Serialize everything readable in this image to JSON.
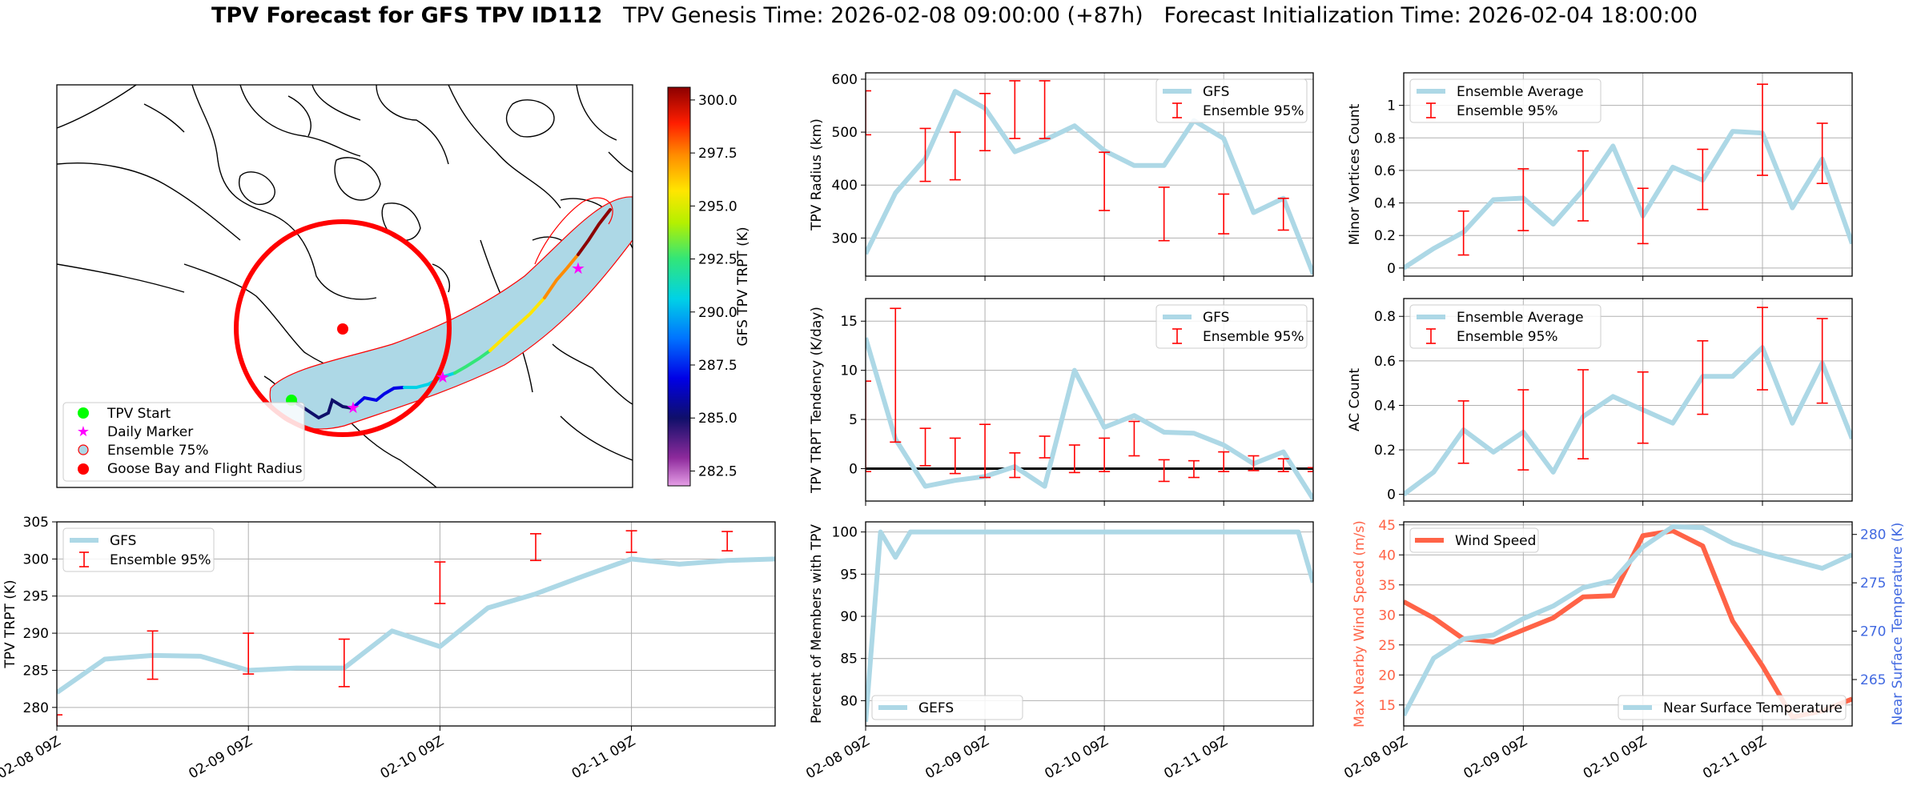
{
  "title": {
    "bold": "TPV Forecast for GFS TPV ID112",
    "genesis": "TPV Genesis Time: 2026-02-08 09:00:00 (+87h)",
    "init": "Forecast Initialization Time: 2026-02-04 18:00:00"
  },
  "colors": {
    "gfs_line": "#add8e6",
    "error_bar": "#ff0000",
    "wind_line": "#ff6347",
    "temp_axis": "#4169e1",
    "flight_radius": "#ff0000",
    "ensemble_area": "#add8e6",
    "start_marker": "#00ff00",
    "daily_marker": "#ff00ff"
  },
  "map": {
    "legend": [
      "TPV Start",
      "Daily Marker",
      "Ensemble 75%",
      "Goose Bay and Flight Radius"
    ],
    "colorbar": {
      "label": "GFS TPV TRPT (K)",
      "range": [
        281.8,
        300.6
      ],
      "ticks": [
        "300.0",
        "297.5",
        "295.0",
        "292.5",
        "290.0",
        "287.5",
        "285.0",
        "282.5"
      ]
    }
  },
  "chart_data": [
    {
      "id": "trpt",
      "type": "line",
      "ylabel": "TPV TRPT (K)",
      "ylim": [
        277.5,
        305
      ],
      "yticks": [
        280,
        285,
        290,
        295,
        300,
        305
      ],
      "xticks": [
        "02-08 09Z",
        "02-09 09Z",
        "02-10 09Z",
        "02-11 09Z"
      ],
      "legend": [
        "GFS",
        "Ensemble 95%"
      ],
      "series": [
        {
          "name": "GFS",
          "x": [
            0,
            6,
            12,
            18,
            24,
            30,
            36,
            42,
            48,
            54,
            60,
            66,
            72,
            78,
            84,
            90
          ],
          "values": [
            282.0,
            286.5,
            287.0,
            286.9,
            285.0,
            285.3,
            285.3,
            290.3,
            288.2,
            293.4,
            295.3,
            297.7,
            300.0,
            299.3,
            299.8,
            300.0
          ]
        }
      ],
      "error_bars": {
        "x": [
          0,
          12,
          24,
          36,
          48,
          60,
          72,
          84
        ],
        "low": [
          277.0,
          283.8,
          284.5,
          282.8,
          294.0,
          299.8,
          300.9,
          301.1
        ],
        "high": [
          279.0,
          290.3,
          290.0,
          289.2,
          299.6,
          303.4,
          303.8,
          303.7
        ]
      }
    },
    {
      "id": "radius",
      "type": "line",
      "ylabel": "TPV Radius (km)",
      "ylim": [
        228,
        612
      ],
      "yticks": [
        300,
        400,
        500,
        600
      ],
      "xticks": [],
      "legend": [
        "GFS",
        "Ensemble 95%"
      ],
      "series": [
        {
          "name": "GFS",
          "x": [
            0,
            6,
            12,
            18,
            24,
            30,
            36,
            42,
            48,
            54,
            60,
            66,
            72,
            78,
            84,
            90
          ],
          "values": [
            270,
            385,
            450,
            577,
            545,
            463,
            485,
            512,
            465,
            437,
            437,
            522,
            488,
            348,
            375,
            232
          ]
        }
      ],
      "error_bars": {
        "x": [
          0,
          12,
          18,
          24,
          30,
          36,
          48,
          60,
          72,
          84
        ],
        "low": [
          495,
          407,
          410,
          465,
          488,
          488,
          352,
          295,
          308,
          315
        ],
        "high": [
          578,
          507,
          500,
          573,
          597,
          597,
          462,
          396,
          383,
          375
        ]
      }
    },
    {
      "id": "tendency",
      "type": "line",
      "ylabel": "TPV TRPT Tendency (K/day)",
      "ylim": [
        -3.3,
        17.3
      ],
      "yticks": [
        0,
        5,
        10,
        15
      ],
      "xticks": [],
      "legend": [
        "GFS",
        "Ensemble 95%"
      ],
      "series": [
        {
          "name": "GFS",
          "x": [
            0,
            6,
            12,
            18,
            24,
            30,
            36,
            42,
            48,
            54,
            60,
            66,
            72,
            78,
            84,
            90
          ],
          "values": [
            13.3,
            3.0,
            -1.8,
            -1.2,
            -0.8,
            0.2,
            -1.8,
            10.0,
            4.2,
            5.4,
            3.7,
            3.6,
            2.4,
            0.5,
            1.7,
            -3.1
          ]
        }
      ],
      "error_bars": {
        "x": [
          0,
          6,
          12,
          18,
          24,
          30,
          36,
          42,
          48,
          54,
          60,
          66,
          72,
          78,
          84,
          90
        ],
        "low": [
          -0.3,
          2.7,
          0.3,
          -0.5,
          -0.9,
          -0.9,
          1.1,
          -0.4,
          -0.3,
          1.3,
          -1.3,
          -0.9,
          -0.3,
          -0.2,
          -0.3,
          -0.3
        ],
        "high": [
          8.9,
          16.3,
          4.1,
          3.1,
          4.5,
          1.6,
          3.3,
          2.4,
          3.1,
          4.8,
          0.9,
          0.8,
          1.7,
          1.3,
          1.0,
          0.1
        ]
      },
      "zero_line": 0
    },
    {
      "id": "percent",
      "type": "line",
      "ylabel": "Percent of Members with TPV",
      "ylim": [
        77,
        101.2
      ],
      "yticks": [
        80,
        85,
        90,
        95,
        100
      ],
      "xticks": [
        "02-08 09Z",
        "02-09 09Z",
        "02-10 09Z",
        "02-11 09Z"
      ],
      "legend": [
        "GEFS"
      ],
      "series": [
        {
          "name": "GEFS",
          "x": [
            0,
            3,
            6,
            9,
            12,
            18,
            24,
            30,
            36,
            42,
            48,
            54,
            60,
            66,
            72,
            78,
            84,
            87,
            90
          ],
          "values": [
            77.5,
            100,
            97,
            100,
            100,
            100,
            100,
            100,
            100,
            100,
            100,
            100,
            100,
            100,
            100,
            100,
            100,
            100,
            94
          ]
        }
      ]
    },
    {
      "id": "minor",
      "type": "line",
      "ylabel": "Minor Vortices Count",
      "ylim": [
        -0.05,
        1.2
      ],
      "yticks": [
        0.0,
        0.2,
        0.4,
        0.6,
        0.8,
        1.0
      ],
      "xticks": [],
      "legend": [
        "Ensemble Average",
        "Ensemble 95%"
      ],
      "series": [
        {
          "name": "Ensemble Average",
          "x": [
            0,
            6,
            12,
            18,
            24,
            30,
            36,
            42,
            48,
            54,
            60,
            66,
            72,
            78,
            84,
            90
          ],
          "values": [
            0.0,
            0.12,
            0.22,
            0.42,
            0.43,
            0.27,
            0.48,
            0.75,
            0.32,
            0.62,
            0.54,
            0.84,
            0.83,
            0.37,
            0.67,
            0.15
          ]
        }
      ],
      "error_bars": {
        "x": [
          12,
          24,
          36,
          48,
          60,
          72,
          84
        ],
        "low": [
          0.08,
          0.23,
          0.29,
          0.15,
          0.36,
          0.57,
          0.52
        ],
        "high": [
          0.35,
          0.61,
          0.72,
          0.49,
          0.73,
          1.13,
          0.89
        ]
      }
    },
    {
      "id": "ac",
      "type": "line",
      "ylabel": "AC Count",
      "ylim": [
        -0.03,
        0.88
      ],
      "yticks": [
        0.0,
        0.2,
        0.4,
        0.6,
        0.8
      ],
      "xticks": [],
      "legend": [
        "Ensemble Average",
        "Ensemble 95%"
      ],
      "series": [
        {
          "name": "Ensemble Average",
          "x": [
            0,
            6,
            12,
            18,
            24,
            30,
            36,
            42,
            48,
            54,
            60,
            66,
            72,
            78,
            84,
            90
          ],
          "values": [
            0.0,
            0.1,
            0.29,
            0.19,
            0.28,
            0.1,
            0.35,
            0.44,
            0.38,
            0.32,
            0.53,
            0.53,
            0.66,
            0.32,
            0.59,
            0.25
          ]
        }
      ],
      "error_bars": {
        "x": [
          12,
          24,
          36,
          48,
          60,
          72,
          84
        ],
        "low": [
          0.14,
          0.11,
          0.16,
          0.23,
          0.36,
          0.47,
          0.41
        ],
        "high": [
          0.42,
          0.47,
          0.56,
          0.55,
          0.69,
          0.84,
          0.79
        ]
      }
    },
    {
      "id": "wind",
      "type": "line",
      "ylabel": "Max Nearby Wind Speed (m/s)",
      "y2label": "Near Surface Temperature (K)",
      "ylim": [
        11.5,
        45.5
      ],
      "yticks": [
        15,
        20,
        25,
        30,
        35,
        40,
        45
      ],
      "y2lim": [
        260.2,
        281.3
      ],
      "y2ticks": [
        265,
        270,
        275,
        280
      ],
      "xticks": [
        "02-08 09Z",
        "02-09 09Z",
        "02-10 09Z",
        "02-11 09Z"
      ],
      "legend": [
        "Wind Speed",
        "Near Surface Temperature"
      ],
      "series": [
        {
          "name": "Wind Speed",
          "axis": "left",
          "x": [
            0,
            6,
            12,
            18,
            24,
            30,
            36,
            42,
            48,
            54,
            60,
            66,
            72,
            78,
            84,
            90
          ],
          "values": [
            32.2,
            29.5,
            26.0,
            25.5,
            27.5,
            29.5,
            33.0,
            33.2,
            43.2,
            44.0,
            41.5,
            29.0,
            21.5,
            13.0,
            14.0,
            16.0
          ]
        },
        {
          "name": "Near Surface Temperature",
          "axis": "right",
          "x": [
            0,
            6,
            12,
            18,
            24,
            30,
            36,
            42,
            48,
            54,
            60,
            66,
            72,
            78,
            84,
            90
          ],
          "values": [
            261.3,
            267.2,
            269.2,
            269.6,
            271.3,
            272.6,
            274.5,
            275.2,
            278.7,
            280.8,
            280.7,
            279.1,
            278.1,
            277.3,
            276.5,
            277.9
          ]
        }
      ]
    }
  ]
}
